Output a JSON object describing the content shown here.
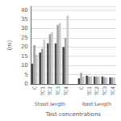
{
  "chart_data": {
    "type": "bar",
    "xlabel": "Test concentrations",
    "ylabel": "(m)",
    "categories": [
      "C",
      "TC1",
      "TC2",
      "TC3",
      "TC4",
      null,
      "C",
      "TC1",
      "TC2",
      "TC3",
      "TC4"
    ],
    "series": [
      {
        "color": "#404040",
        "values": [
          11,
          17,
          22,
          22,
          20,
          null,
          3,
          4.5,
          4,
          4,
          3.5
        ]
      },
      {
        "color": "#a0a0a0",
        "values": [
          21,
          19,
          27,
          32,
          25,
          null,
          6,
          4,
          4,
          3.5,
          3.5
        ]
      },
      {
        "color": "#c8c8c8",
        "values": [
          16,
          24,
          28,
          33,
          37,
          null,
          4,
          4,
          4,
          3.5,
          3.5
        ]
      }
    ],
    "annotations": [
      "Shoot length",
      "Root Length"
    ],
    "ylim": [
      0,
      42
    ],
    "yticks": [
      0,
      5,
      10,
      15,
      20,
      25,
      30,
      35,
      40
    ],
    "grid": true
  }
}
